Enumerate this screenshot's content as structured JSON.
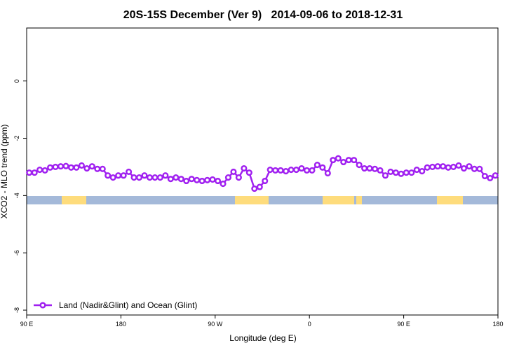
{
  "chart_data": {
    "type": "line",
    "title": "20S-15S December (Ver 9)   2014-09-06 to 2018-12-31",
    "x_label": "Longitude (deg E)",
    "y_label": "XCO2 - MLO trend (ppm)",
    "xlim": [
      90,
      540
    ],
    "ylim": [
      -8.17,
      1.85
    ],
    "xticks": [
      {
        "value": 90,
        "label": "90 E"
      },
      180,
      {
        "value": 270,
        "label": "90 W"
      },
      {
        "value": 360,
        "label": "0"
      },
      {
        "value": 450,
        "label": "90 E"
      },
      {
        "value": 540,
        "label": "180"
      }
    ],
    "yticks": [
      0,
      -2,
      -4,
      -6,
      -8
    ],
    "legend_position": "bottom-left",
    "x": [
      92.5,
      97.5,
      102.5,
      107.5,
      112.5,
      117.5,
      122.5,
      127.5,
      132.5,
      137.5,
      142.5,
      147.5,
      152.5,
      157.5,
      162.5,
      167.5,
      172.5,
      177.5,
      182.5,
      187.5,
      192.5,
      197.5,
      202.5,
      207.5,
      212.5,
      217.5,
      222.5,
      227.5,
      232.5,
      237.5,
      242.5,
      247.5,
      252.5,
      257.5,
      262.5,
      267.5,
      272.5,
      277.5,
      282.5,
      287.5,
      292.5,
      297.5,
      302.5,
      307.5,
      312.5,
      317.5,
      322.5,
      327.5,
      332.5,
      337.5,
      342.5,
      347.5,
      352.5,
      357.5,
      362.5,
      367.5,
      372.5,
      377.5,
      382.5,
      387.5,
      392.5,
      397.5,
      402.5,
      407.5,
      412.5,
      417.5,
      422.5,
      427.5,
      432.5,
      437.5,
      442.5,
      447.5,
      452.5,
      457.5,
      462.5,
      467.5,
      472.5,
      477.5,
      482.5,
      487.5,
      492.5,
      497.5,
      502.5,
      507.5,
      512.5,
      517.5,
      522.5,
      527.5,
      532.5,
      537.5
    ],
    "series": [
      {
        "name": "Land (Nadir&Glint) and Ocean (Glint)",
        "color": "#a020f0",
        "values": [
          -3.2,
          -3.2,
          -3.1,
          -3.12,
          -3.02,
          -3.0,
          -2.98,
          -2.97,
          -3.02,
          -3.02,
          -2.95,
          -3.05,
          -2.98,
          -3.07,
          -3.07,
          -3.3,
          -3.37,
          -3.3,
          -3.3,
          -3.17,
          -3.37,
          -3.37,
          -3.3,
          -3.37,
          -3.37,
          -3.37,
          -3.3,
          -3.42,
          -3.37,
          -3.42,
          -3.49,
          -3.42,
          -3.46,
          -3.49,
          -3.46,
          -3.44,
          -3.49,
          -3.59,
          -3.37,
          -3.17,
          -3.37,
          -3.05,
          -3.2,
          -3.76,
          -3.7,
          -3.49,
          -3.1,
          -3.12,
          -3.12,
          -3.15,
          -3.1,
          -3.1,
          -3.05,
          -3.12,
          -3.12,
          -2.93,
          -3.02,
          -3.22,
          -2.76,
          -2.7,
          -2.83,
          -2.76,
          -2.76,
          -2.93,
          -3.05,
          -3.05,
          -3.07,
          -3.12,
          -3.3,
          -3.17,
          -3.2,
          -3.24,
          -3.2,
          -3.2,
          -3.1,
          -3.15,
          -3.02,
          -3.0,
          -2.98,
          -2.98,
          -3.02,
          -3.0,
          -2.95,
          -3.05,
          -2.98,
          -3.07,
          -3.07,
          -3.32,
          -3.39,
          -3.3
        ]
      }
    ]
  }
}
